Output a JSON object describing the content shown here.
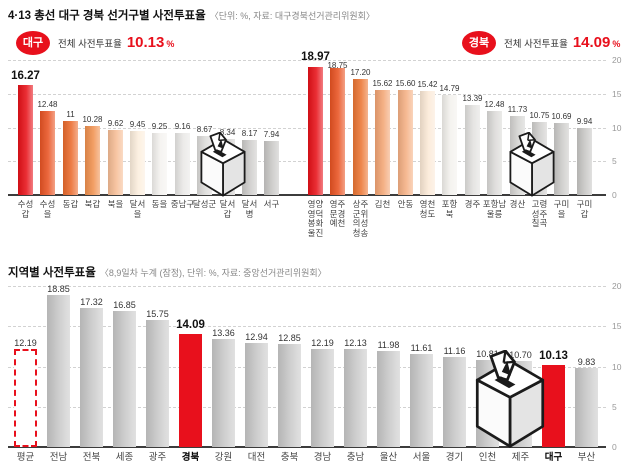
{
  "header": {
    "title": "4·13 총선 대구 경북 선거구별 사전투표율",
    "note": "〈단위: %, 자료: 대구경북선거관리위원회〉"
  },
  "daegu_summary": {
    "badge": "대구",
    "label": "전체 사전투표율",
    "value": "10.13",
    "unit": "%"
  },
  "gyeongbuk_summary": {
    "badge": "경북",
    "label": "전체 사전투표율",
    "value": "14.09",
    "unit": "%"
  },
  "bottom_header": {
    "title": "지역별 사전투표율",
    "note": "〈8,9일차 누계 (잠정), 단위: %, 자료: 중앙선거관리위원회〉"
  },
  "colors": {
    "accent_red": "#e8101c",
    "bar_gray": "#c9c9c9",
    "grid": "#d2d2d2",
    "axis": "#3c3c3c"
  },
  "icons": {
    "ballot_box": "ballot-box-icon"
  },
  "chart_data": [
    {
      "id": "daegu",
      "type": "bar",
      "title": "대구 선거구별 사전투표율",
      "unit": "%",
      "overall_rate": 10.13,
      "categories": [
        "수성갑",
        "수성을",
        "동갑",
        "북갑",
        "북을",
        "달서을",
        "동을",
        "중남구",
        "달성군",
        "달서갑",
        "달서병",
        "서구"
      ],
      "category_display": [
        "수성\n갑",
        "수성\n을",
        "동갑",
        "북갑",
        "북을",
        "달서\n을",
        "동을",
        "중남구",
        "달성군",
        "달서\n갑",
        "달서\n병",
        "서구"
      ],
      "values": [
        16.27,
        12.48,
        11,
        10.28,
        9.62,
        9.45,
        9.25,
        9.16,
        8.67,
        8.34,
        8.17,
        7.94
      ],
      "value_labels": [
        "16.27",
        "12.48",
        "11",
        "10.28",
        "9.62",
        "9.45",
        "9.25",
        "9.16",
        "8.67",
        "8.34",
        "8.17",
        "7.94"
      ],
      "bar_colors": [
        "#e71118",
        "#e95424",
        "#eb6b2d",
        "#f0914f",
        "#f6bd95",
        "#fceedd",
        "#f4f2ef",
        "#e9e8e6",
        "#dcdbd9",
        "#d3d2d0",
        "#cdccca",
        "#c9c8c6"
      ],
      "label_dy": [
        0,
        0,
        0,
        0,
        0,
        0,
        0,
        0,
        0,
        0,
        0,
        0
      ],
      "emphasis_first": true,
      "ylim": [
        0,
        20
      ],
      "yticks": [
        0,
        5,
        10,
        15,
        20
      ],
      "grid": true,
      "legend": "none"
    },
    {
      "id": "gyeongbuk",
      "type": "bar",
      "title": "경북 선거구별 사전투표율",
      "unit": "%",
      "overall_rate": 14.09,
      "categories": [
        "영양영덕봉화울진",
        "영주문경예천",
        "상주군위의성청송",
        "김천",
        "안동",
        "영천청도",
        "포항북",
        "경주",
        "포항남울릉",
        "경산",
        "고령성주칠곡",
        "구미을",
        "구미갑"
      ],
      "category_display": [
        "영양\n영덕\n봉화\n울진",
        "영주\n문경\n예천",
        "상주\n군위\n의성\n청송",
        "김천",
        "안동",
        "영천\n청도",
        "포항\n북",
        "경주",
        "포항남\n울릉",
        "경산",
        "고령\n성주\n칠곡",
        "구미\n을",
        "구미\n갑"
      ],
      "values": [
        18.97,
        18.75,
        17.2,
        15.62,
        15.6,
        15.42,
        14.79,
        13.39,
        12.48,
        11.73,
        10.75,
        10.69,
        9.94
      ],
      "value_labels": [
        "18.97",
        "18.75",
        "17.20",
        "15.62",
        "15.60",
        "15.42",
        "14.79",
        "13.39",
        "12.48",
        "11.73",
        "10.75",
        "10.69",
        "9.94"
      ],
      "bar_colors": [
        "#e71118",
        "#e95322",
        "#ec7634",
        "#f3a574",
        "#f5b084",
        "#fbe9d6",
        "#f3f1ed",
        "#e2e1df",
        "#dbdad8",
        "#d5d4d2",
        "#d0cfcd",
        "#cccbc9",
        "#c8c7c5"
      ],
      "label_dy": [
        -1,
        4,
        0,
        0,
        0,
        0,
        0,
        0,
        0,
        0,
        0,
        0,
        0
      ],
      "emphasis_first": true,
      "ylim": [
        0,
        20
      ],
      "yticks": [
        0,
        5,
        10,
        15,
        20
      ],
      "grid": true,
      "legend": "none"
    },
    {
      "id": "regions",
      "type": "bar",
      "title": "지역별 사전투표율",
      "unit": "%",
      "categories": [
        "평균",
        "전남",
        "전북",
        "세종",
        "광주",
        "경북",
        "강원",
        "대전",
        "충북",
        "경남",
        "충남",
        "울산",
        "서울",
        "경기",
        "인천",
        "제주",
        "대구",
        "부산"
      ],
      "category_display": [
        "평균",
        "전남",
        "전북",
        "세종",
        "광주",
        "경북",
        "강원",
        "대전",
        "충북",
        "경남",
        "충남",
        "울산",
        "서울",
        "경기",
        "인천",
        "제주",
        "대구",
        "부산"
      ],
      "values": [
        12.19,
        18.85,
        17.32,
        16.85,
        15.75,
        14.09,
        13.36,
        12.94,
        12.85,
        12.19,
        12.13,
        11.98,
        11.61,
        11.16,
        10.81,
        10.7,
        10.13,
        9.83
      ],
      "value_labels": [
        "12.19",
        "18.85",
        "17.32",
        "16.85",
        "15.75",
        "14.09",
        "13.36",
        "12.94",
        "12.85",
        "12.19",
        "12.13",
        "11.98",
        "11.61",
        "11.16",
        "10.81",
        "10.70",
        "10.13",
        "9.83"
      ],
      "styles": [
        "average",
        "",
        "",
        "",
        "",
        "highlight",
        "",
        "",
        "",
        "",
        "",
        "",
        "",
        "",
        "",
        "",
        "highlight",
        ""
      ],
      "ylim": [
        0,
        20
      ],
      "yticks": [
        0,
        5,
        10,
        15,
        20
      ],
      "grid": true,
      "legend": "none"
    }
  ]
}
